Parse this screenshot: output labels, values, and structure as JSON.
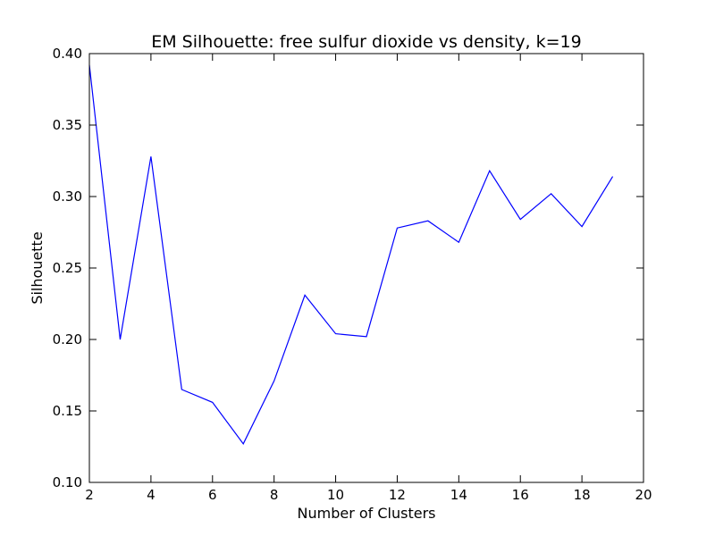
{
  "chart_data": {
    "type": "line",
    "title": "EM Silhouette: free sulfur dioxide vs density, k=19",
    "xlabel": "Number of Clusters",
    "ylabel": "Silhouette",
    "xlim": [
      2,
      20
    ],
    "ylim": [
      0.1,
      0.4
    ],
    "xticks": [
      "2",
      "4",
      "6",
      "8",
      "10",
      "12",
      "14",
      "16",
      "18",
      "20"
    ],
    "yticks": [
      "0.10",
      "0.15",
      "0.20",
      "0.25",
      "0.30",
      "0.35",
      "0.40"
    ],
    "grid": false,
    "series": [
      {
        "color": "#0000ff",
        "x": [
          2,
          3,
          4,
          5,
          6,
          7,
          8,
          9,
          10,
          11,
          12,
          13,
          14,
          15,
          16,
          17,
          18,
          19
        ],
        "y": [
          0.392,
          0.2,
          0.328,
          0.165,
          0.156,
          0.127,
          0.171,
          0.231,
          0.204,
          0.202,
          0.278,
          0.283,
          0.268,
          0.318,
          0.284,
          0.302,
          0.279,
          0.314
        ]
      }
    ]
  }
}
